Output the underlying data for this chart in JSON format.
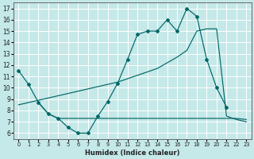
{
  "xlabel": "Humidex (Indice chaleur)",
  "bg_color": "#c5e8e8",
  "grid_color": "#b0d8d8",
  "line_color": "#006666",
  "xlim": [
    -0.5,
    23.5
  ],
  "ylim": [
    5.5,
    17.5
  ],
  "xticks": [
    0,
    1,
    2,
    3,
    4,
    5,
    6,
    7,
    8,
    9,
    10,
    11,
    12,
    13,
    14,
    15,
    16,
    17,
    18,
    19,
    20,
    21,
    22,
    23
  ],
  "yticks": [
    6,
    7,
    8,
    9,
    10,
    11,
    12,
    13,
    14,
    15,
    16,
    17
  ],
  "line1_x": [
    0,
    1,
    2,
    3,
    4,
    5,
    6,
    7,
    8,
    9,
    10,
    11,
    12,
    13,
    14,
    15,
    16,
    17,
    18,
    19,
    20,
    21
  ],
  "line1_y": [
    11.5,
    10.3,
    8.7,
    7.7,
    7.3,
    6.5,
    6.0,
    6.0,
    7.5,
    8.8,
    10.4,
    12.5,
    14.7,
    15.0,
    15.0,
    16.0,
    15.0,
    17.0,
    16.3,
    12.5,
    10.0,
    8.3
  ],
  "line2_x": [
    0,
    1,
    2,
    3,
    4,
    5,
    6,
    7,
    8,
    9,
    10,
    11,
    12,
    13,
    14,
    15,
    16,
    17,
    18,
    19,
    20,
    21,
    22,
    23
  ],
  "line2_y": [
    8.5,
    8.7,
    8.9,
    9.1,
    9.3,
    9.5,
    9.7,
    9.9,
    10.1,
    10.3,
    10.5,
    10.8,
    11.1,
    11.4,
    11.7,
    12.2,
    12.7,
    13.3,
    15.0,
    15.2,
    15.2,
    7.5,
    7.2,
    7.0
  ],
  "line3_x": [
    2,
    3,
    4,
    5,
    6,
    7,
    8,
    9,
    10,
    11,
    12,
    13,
    14,
    15,
    16,
    17,
    18,
    19,
    20,
    21,
    22,
    23
  ],
  "line3_y": [
    8.7,
    7.7,
    7.3,
    7.3,
    7.3,
    7.3,
    7.3,
    7.3,
    7.3,
    7.3,
    7.3,
    7.3,
    7.3,
    7.3,
    7.3,
    7.3,
    7.3,
    7.3,
    7.3,
    7.3,
    7.3,
    7.2
  ]
}
